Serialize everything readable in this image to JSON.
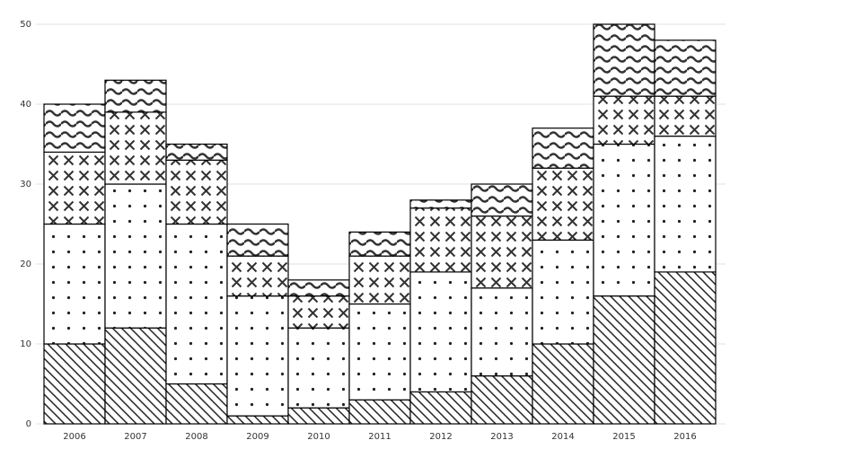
{
  "chart_data": {
    "type": "stacked_bar",
    "categories": [
      "2006",
      "2007",
      "2008",
      "2009",
      "2010",
      "2011",
      "2012",
      "2013",
      "2014",
      "2015",
      "2016"
    ],
    "series": [
      {
        "pattern": "diagonal",
        "color": "#000000",
        "values": [
          10,
          12,
          5,
          1,
          2,
          3,
          4,
          6,
          10,
          16,
          19
        ]
      },
      {
        "pattern": "dots",
        "color": "#000000",
        "values": [
          15,
          18,
          20,
          15,
          10,
          12,
          15,
          11,
          13,
          19,
          17
        ]
      },
      {
        "pattern": "crosses",
        "color": "#000000",
        "values": [
          9,
          9,
          8,
          5,
          4,
          6,
          8,
          9,
          9,
          6,
          5
        ]
      },
      {
        "pattern": "waves",
        "color": "#000000",
        "values": [
          6,
          4,
          2,
          4,
          2,
          3,
          1,
          4,
          5,
          9,
          7
        ]
      }
    ],
    "ylim": [
      0,
      50
    ],
    "yticks": [
      0,
      10,
      20,
      30,
      40,
      50
    ],
    "grid": true
  }
}
